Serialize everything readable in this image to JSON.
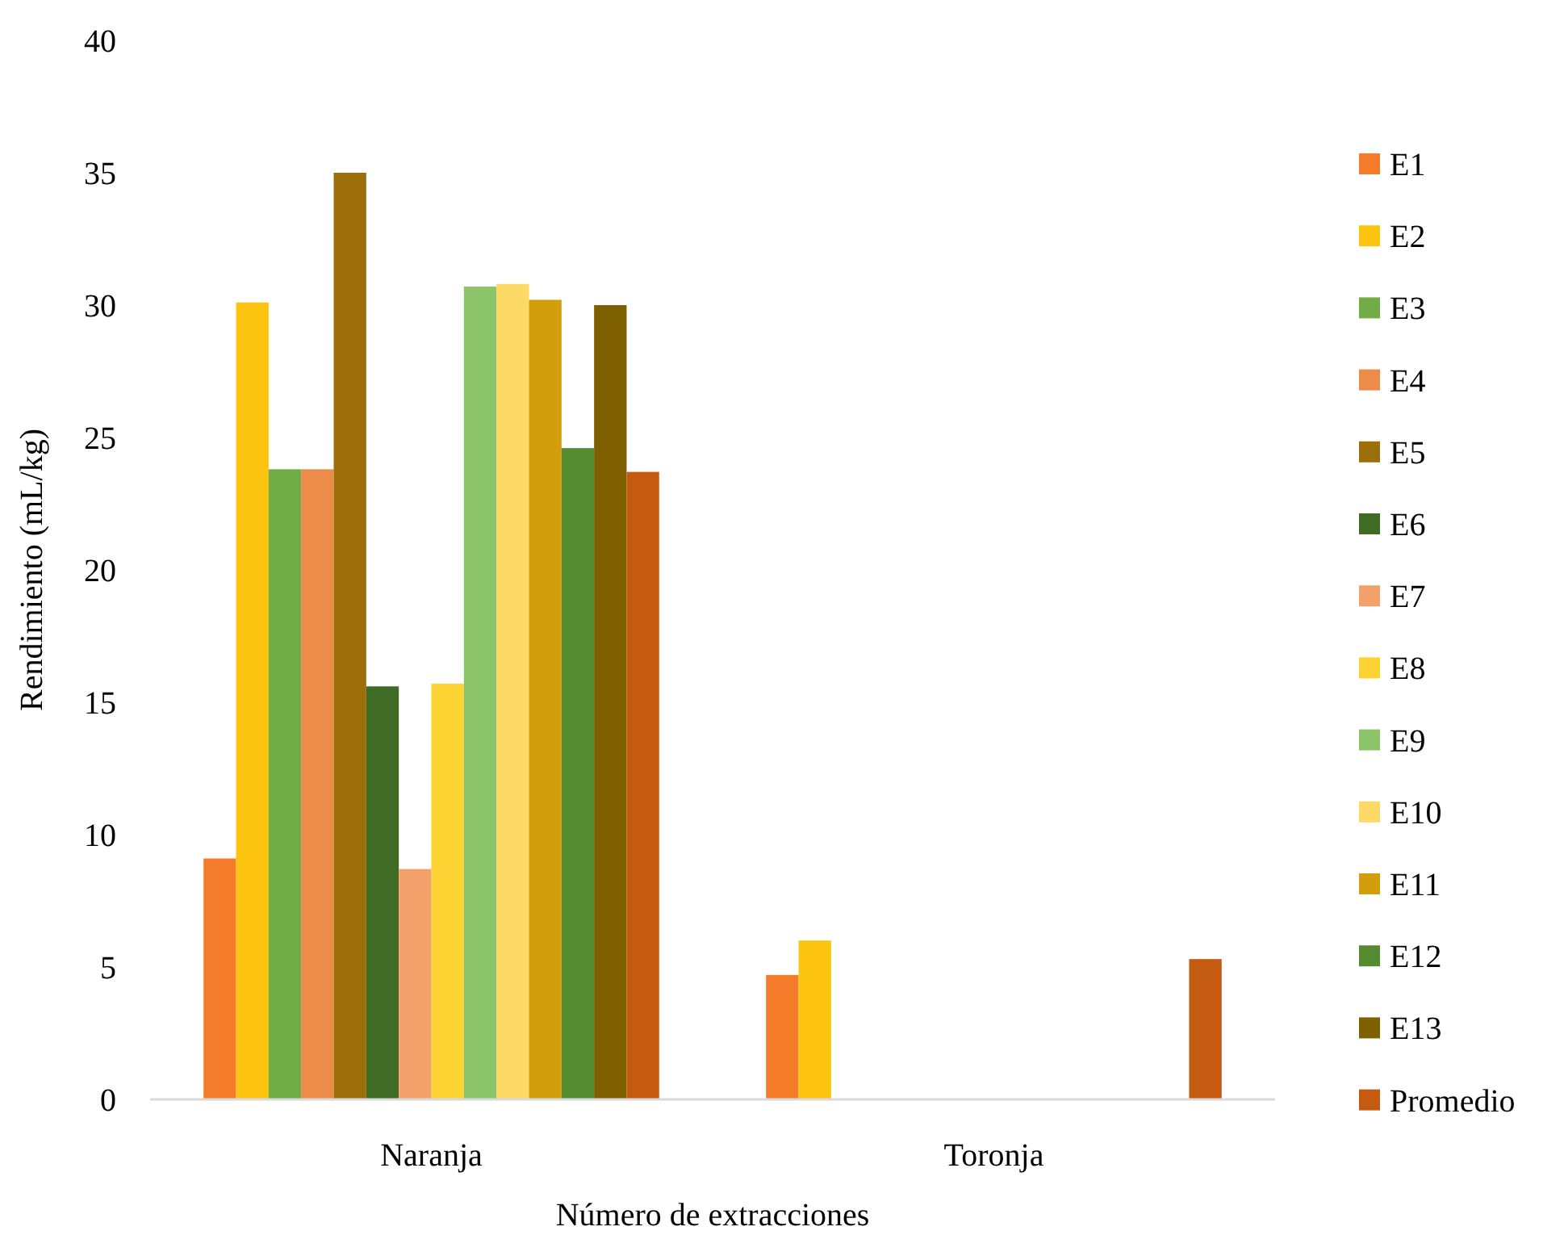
{
  "chart_data": {
    "type": "bar",
    "xlabel": "Número de extracciones",
    "ylabel": "Rendimiento (mL/kg)",
    "categories": [
      "Naranja",
      "Toronja"
    ],
    "ylim": [
      0,
      40
    ],
    "yticks": [
      0,
      5,
      10,
      15,
      20,
      25,
      30,
      35,
      40
    ],
    "grid": false,
    "legend": "right",
    "series": [
      {
        "name": "E1",
        "color": "#f47b2a",
        "values": [
          9.1,
          4.7
        ]
      },
      {
        "name": "E2",
        "color": "#fcc30f",
        "values": [
          30.1,
          6.0
        ]
      },
      {
        "name": "E3",
        "color": "#70ad47",
        "values": [
          23.8,
          null
        ]
      },
      {
        "name": "E4",
        "color": "#ed8b4a",
        "values": [
          23.8,
          null
        ]
      },
      {
        "name": "E5",
        "color": "#9c6f0a",
        "values": [
          35.0,
          null
        ]
      },
      {
        "name": "E6",
        "color": "#3f6b25",
        "values": [
          15.6,
          null
        ]
      },
      {
        "name": "E7",
        "color": "#f4a06a",
        "values": [
          8.7,
          null
        ]
      },
      {
        "name": "E8",
        "color": "#fdd233",
        "values": [
          15.7,
          null
        ]
      },
      {
        "name": "E9",
        "color": "#8cc46a",
        "values": [
          30.7,
          null
        ]
      },
      {
        "name": "E10",
        "color": "#fdd966",
        "values": [
          30.8,
          null
        ]
      },
      {
        "name": "E11",
        "color": "#d39e0c",
        "values": [
          30.2,
          null
        ]
      },
      {
        "name": "E12",
        "color": "#558c32",
        "values": [
          24.6,
          null
        ]
      },
      {
        "name": "E13",
        "color": "#7f6000",
        "values": [
          30.0,
          null
        ]
      },
      {
        "name": "Promedio",
        "color": "#c55a11",
        "values": [
          23.7,
          5.3
        ]
      }
    ]
  }
}
